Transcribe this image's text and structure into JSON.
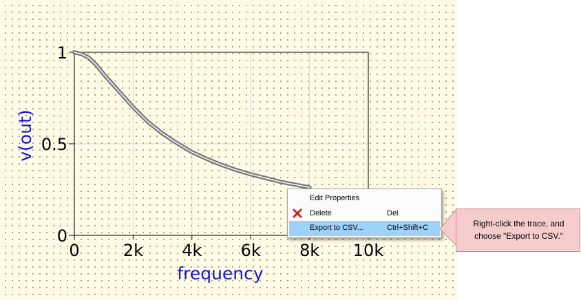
{
  "chart_data": {
    "type": "line",
    "xlabel": "frequency",
    "ylabel": "v(out)",
    "x_ticks": [
      "0",
      "2k",
      "4k",
      "6k",
      "8k",
      "10k"
    ],
    "y_ticks": [
      "0",
      "0.5",
      "1"
    ],
    "xlim": [
      0,
      10000
    ],
    "ylim": [
      0,
      1
    ],
    "grid": true,
    "series": [
      {
        "x": [
          0,
          250,
          500,
          750,
          1000,
          1500,
          2000,
          2500,
          3000,
          3500,
          4000,
          4500,
          5000,
          5500,
          6000,
          6500,
          7000,
          7500,
          8000
        ],
        "y": [
          1.0,
          0.99,
          0.97,
          0.93,
          0.88,
          0.79,
          0.7,
          0.62,
          0.556,
          0.503,
          0.455,
          0.418,
          0.385,
          0.357,
          0.333,
          0.313,
          0.293,
          0.277,
          0.262
        ],
        "color": "#777777"
      }
    ]
  },
  "context_menu": {
    "items": [
      {
        "label": "Edit Properties",
        "shortcut": "",
        "icon": "",
        "selected": false
      },
      {
        "label": "Delete",
        "shortcut": "Del",
        "icon": "delete-x-icon",
        "selected": false
      },
      {
        "label": "Export to CSV...",
        "shortcut": "Ctrl+Shift+C",
        "icon": "",
        "selected": true
      }
    ]
  },
  "callout": {
    "text": "Right-click the trace, and\nchoose \"Export to CSV.\""
  },
  "colors": {
    "canvas_background": "#fffbe6",
    "axis_title": "#1414dc",
    "menu_highlight": "#9fd1f8",
    "callout_background": "#f6cccc",
    "trace": "#777777",
    "delete_icon": "#d02020"
  }
}
